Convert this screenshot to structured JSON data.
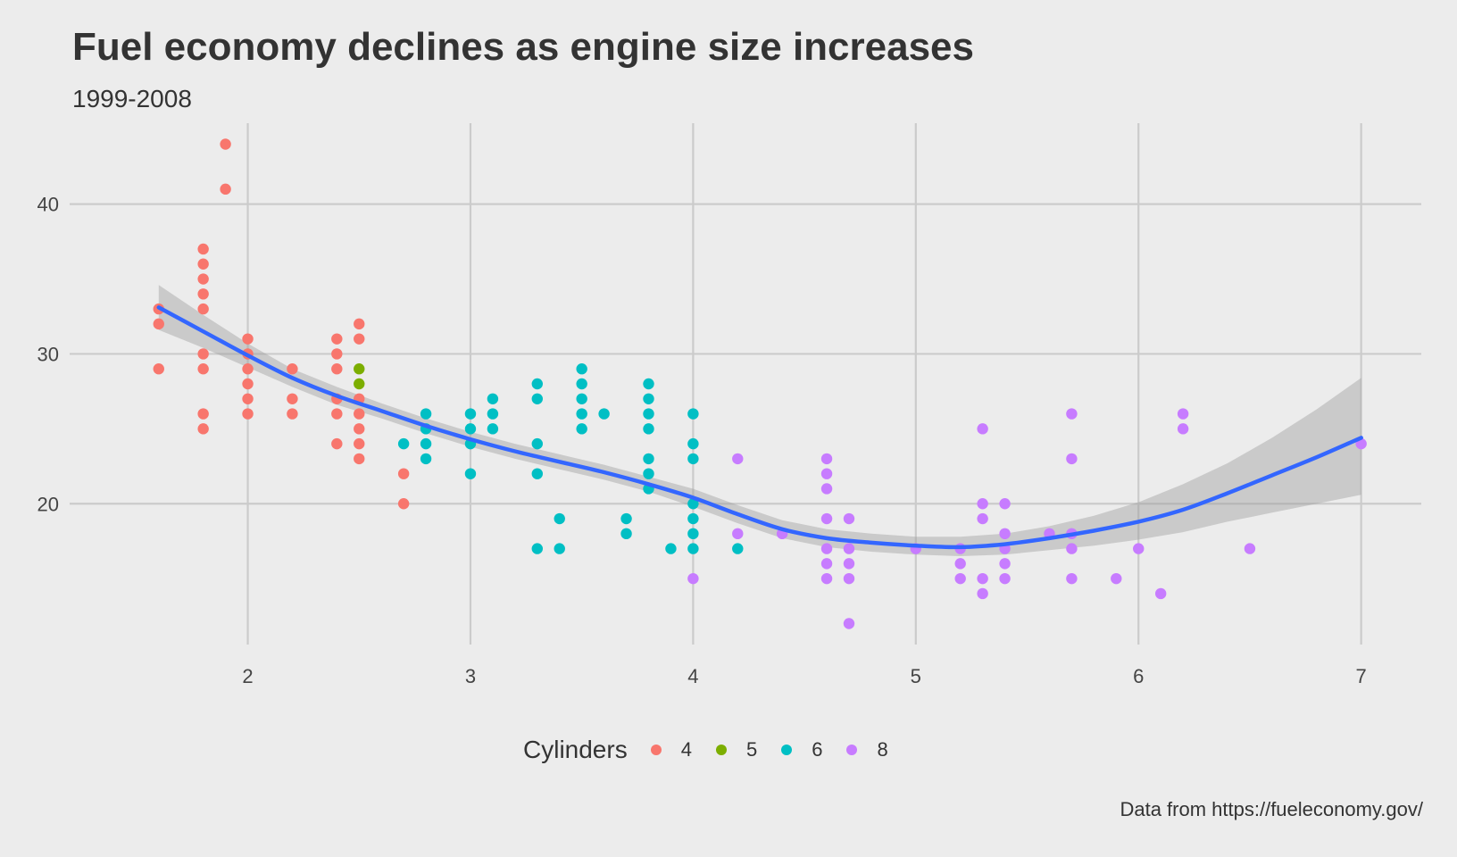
{
  "chart_data": {
    "type": "scatter",
    "title": "Fuel economy declines as engine size increases",
    "subtitle": "1999-2008",
    "caption": "Data from https://fueleconomy.gov/",
    "xlabel": "",
    "ylabel": "",
    "xlim": [
      1.2,
      7.27
    ],
    "ylim": [
      10.6,
      45.4
    ],
    "x_ticks": [
      2,
      3,
      4,
      5,
      6,
      7
    ],
    "y_ticks": [
      20,
      30,
      40
    ],
    "grid": true,
    "legend": {
      "title": "Cylinders",
      "position": "bottom",
      "entries": [
        {
          "label": "4",
          "color": "#F8766D"
        },
        {
          "label": "5",
          "color": "#7CAE00"
        },
        {
          "label": "6",
          "color": "#00BFC4"
        },
        {
          "label": "8",
          "color": "#C77CFF"
        }
      ]
    },
    "series": [
      {
        "name": "4",
        "color": "#F8766D",
        "points": [
          [
            1.6,
            33
          ],
          [
            1.6,
            32
          ],
          [
            1.6,
            29
          ],
          [
            1.8,
            37
          ],
          [
            1.8,
            36
          ],
          [
            1.8,
            35
          ],
          [
            1.8,
            34
          ],
          [
            1.8,
            33
          ],
          [
            1.8,
            30
          ],
          [
            1.8,
            29
          ],
          [
            1.8,
            26
          ],
          [
            1.8,
            25
          ],
          [
            1.9,
            44
          ],
          [
            1.9,
            41
          ],
          [
            2.0,
            31
          ],
          [
            2.0,
            30
          ],
          [
            2.0,
            29
          ],
          [
            2.0,
            28
          ],
          [
            2.0,
            27
          ],
          [
            2.0,
            26
          ],
          [
            2.2,
            29
          ],
          [
            2.2,
            27
          ],
          [
            2.2,
            26
          ],
          [
            2.4,
            31
          ],
          [
            2.4,
            30
          ],
          [
            2.4,
            29
          ],
          [
            2.4,
            27
          ],
          [
            2.4,
            26
          ],
          [
            2.4,
            24
          ],
          [
            2.5,
            32
          ],
          [
            2.5,
            31
          ],
          [
            2.5,
            27
          ],
          [
            2.5,
            26
          ],
          [
            2.5,
            25
          ],
          [
            2.5,
            24
          ],
          [
            2.5,
            23
          ],
          [
            2.7,
            22
          ],
          [
            2.7,
            20
          ]
        ]
      },
      {
        "name": "5",
        "color": "#7CAE00",
        "points": [
          [
            2.5,
            29
          ],
          [
            2.5,
            28
          ]
        ]
      },
      {
        "name": "6",
        "color": "#00BFC4",
        "points": [
          [
            2.7,
            24
          ],
          [
            2.8,
            26
          ],
          [
            2.8,
            25
          ],
          [
            2.8,
            24
          ],
          [
            2.8,
            23
          ],
          [
            3.0,
            26
          ],
          [
            3.0,
            25
          ],
          [
            3.0,
            24
          ],
          [
            3.0,
            22
          ],
          [
            3.1,
            27
          ],
          [
            3.1,
            26
          ],
          [
            3.1,
            25
          ],
          [
            3.3,
            28
          ],
          [
            3.3,
            27
          ],
          [
            3.3,
            24
          ],
          [
            3.3,
            22
          ],
          [
            3.3,
            17
          ],
          [
            3.4,
            19
          ],
          [
            3.4,
            17
          ],
          [
            3.5,
            29
          ],
          [
            3.5,
            28
          ],
          [
            3.5,
            27
          ],
          [
            3.5,
            26
          ],
          [
            3.5,
            25
          ],
          [
            3.6,
            26
          ],
          [
            3.7,
            19
          ],
          [
            3.7,
            18
          ],
          [
            3.8,
            28
          ],
          [
            3.8,
            27
          ],
          [
            3.8,
            26
          ],
          [
            3.8,
            25
          ],
          [
            3.8,
            23
          ],
          [
            3.8,
            22
          ],
          [
            3.8,
            21
          ],
          [
            3.9,
            17
          ],
          [
            4.0,
            26
          ],
          [
            4.0,
            24
          ],
          [
            4.0,
            23
          ],
          [
            4.0,
            20
          ],
          [
            4.0,
            19
          ],
          [
            4.0,
            18
          ],
          [
            4.0,
            17
          ],
          [
            4.2,
            17
          ]
        ]
      },
      {
        "name": "8",
        "color": "#C77CFF",
        "points": [
          [
            4.0,
            15
          ],
          [
            4.2,
            23
          ],
          [
            4.2,
            18
          ],
          [
            4.4,
            18
          ],
          [
            4.6,
            23
          ],
          [
            4.6,
            22
          ],
          [
            4.6,
            21
          ],
          [
            4.6,
            19
          ],
          [
            4.6,
            17
          ],
          [
            4.6,
            16
          ],
          [
            4.6,
            15
          ],
          [
            4.7,
            19
          ],
          [
            4.7,
            17
          ],
          [
            4.7,
            16
          ],
          [
            4.7,
            15
          ],
          [
            4.7,
            12
          ],
          [
            5.0,
            17
          ],
          [
            5.2,
            17
          ],
          [
            5.2,
            16
          ],
          [
            5.2,
            15
          ],
          [
            5.3,
            25
          ],
          [
            5.3,
            20
          ],
          [
            5.3,
            19
          ],
          [
            5.3,
            15
          ],
          [
            5.3,
            14
          ],
          [
            5.4,
            20
          ],
          [
            5.4,
            18
          ],
          [
            5.4,
            17
          ],
          [
            5.4,
            16
          ],
          [
            5.4,
            15
          ],
          [
            5.6,
            18
          ],
          [
            5.7,
            26
          ],
          [
            5.7,
            23
          ],
          [
            5.7,
            18
          ],
          [
            5.7,
            17
          ],
          [
            5.7,
            15
          ],
          [
            5.9,
            15
          ],
          [
            6.0,
            17
          ],
          [
            6.1,
            14
          ],
          [
            6.2,
            26
          ],
          [
            6.2,
            25
          ],
          [
            6.5,
            17
          ],
          [
            7.0,
            24
          ]
        ]
      }
    ],
    "smooth": {
      "color": "#3366FF",
      "band_color": "#999999",
      "points": [
        {
          "x": 1.6,
          "y": 33.1,
          "lo": 31.6,
          "hi": 34.6
        },
        {
          "x": 1.8,
          "y": 31.5,
          "lo": 30.4,
          "hi": 32.6
        },
        {
          "x": 2.0,
          "y": 29.9,
          "lo": 29.1,
          "hi": 30.7
        },
        {
          "x": 2.2,
          "y": 28.4,
          "lo": 27.8,
          "hi": 29.0
        },
        {
          "x": 2.4,
          "y": 27.2,
          "lo": 26.6,
          "hi": 27.8
        },
        {
          "x": 2.6,
          "y": 26.2,
          "lo": 25.7,
          "hi": 26.7
        },
        {
          "x": 2.8,
          "y": 25.2,
          "lo": 24.7,
          "hi": 25.7
        },
        {
          "x": 3.0,
          "y": 24.3,
          "lo": 23.8,
          "hi": 24.8
        },
        {
          "x": 3.2,
          "y": 23.5,
          "lo": 23.0,
          "hi": 24.0
        },
        {
          "x": 3.4,
          "y": 22.8,
          "lo": 22.3,
          "hi": 23.3
        },
        {
          "x": 3.6,
          "y": 22.1,
          "lo": 21.6,
          "hi": 22.6
        },
        {
          "x": 3.8,
          "y": 21.3,
          "lo": 20.8,
          "hi": 21.8
        },
        {
          "x": 4.0,
          "y": 20.4,
          "lo": 19.8,
          "hi": 21.0
        },
        {
          "x": 4.2,
          "y": 19.3,
          "lo": 18.7,
          "hi": 19.9
        },
        {
          "x": 4.4,
          "y": 18.3,
          "lo": 17.7,
          "hi": 18.9
        },
        {
          "x": 4.6,
          "y": 17.7,
          "lo": 17.1,
          "hi": 18.3
        },
        {
          "x": 4.8,
          "y": 17.4,
          "lo": 16.8,
          "hi": 18.0
        },
        {
          "x": 5.0,
          "y": 17.2,
          "lo": 16.6,
          "hi": 17.8
        },
        {
          "x": 5.2,
          "y": 17.1,
          "lo": 16.5,
          "hi": 17.8
        },
        {
          "x": 5.4,
          "y": 17.3,
          "lo": 16.6,
          "hi": 18.0
        },
        {
          "x": 5.6,
          "y": 17.7,
          "lo": 16.9,
          "hi": 18.5
        },
        {
          "x": 5.8,
          "y": 18.2,
          "lo": 17.2,
          "hi": 19.2
        },
        {
          "x": 6.0,
          "y": 18.8,
          "lo": 17.6,
          "hi": 20.1
        },
        {
          "x": 6.2,
          "y": 19.6,
          "lo": 18.1,
          "hi": 21.3
        },
        {
          "x": 6.4,
          "y": 20.7,
          "lo": 18.8,
          "hi": 22.7
        },
        {
          "x": 6.6,
          "y": 21.9,
          "lo": 19.4,
          "hi": 24.4
        },
        {
          "x": 6.8,
          "y": 23.1,
          "lo": 20.0,
          "hi": 26.3
        },
        {
          "x": 7.0,
          "y": 24.4,
          "lo": 20.6,
          "hi": 28.4
        }
      ]
    }
  }
}
